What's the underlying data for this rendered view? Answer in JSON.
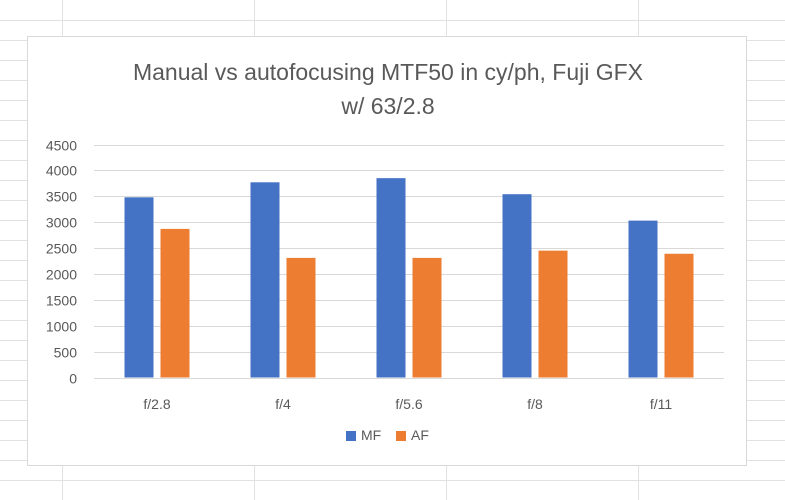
{
  "colors": {
    "gridline": "#d9d9d9",
    "sheet_grid": "#e2e2e2",
    "axis_text": "#595959"
  },
  "chart_data": {
    "type": "bar",
    "title_line1": "Manual vs autofocusing MTF50 in cy/ph, Fuji GFX",
    "title_line2": "w/ 63/2.8",
    "xlabel": "",
    "ylabel": "",
    "categories": [
      "f/2.8",
      "f/4",
      "f/5.6",
      "f/8",
      "f/11"
    ],
    "ylim": [
      0,
      4500
    ],
    "y_ticks": [
      0,
      500,
      1000,
      1500,
      2000,
      2500,
      3000,
      3500,
      4000,
      4500
    ],
    "grid": true,
    "legend_position": "bottom",
    "series": [
      {
        "name": "MF",
        "color": "#4472C4",
        "values": [
          3480,
          3770,
          3850,
          3540,
          3030
        ]
      },
      {
        "name": "AF",
        "color": "#ED7D31",
        "values": [
          2870,
          2310,
          2310,
          2450,
          2390
        ]
      }
    ]
  }
}
